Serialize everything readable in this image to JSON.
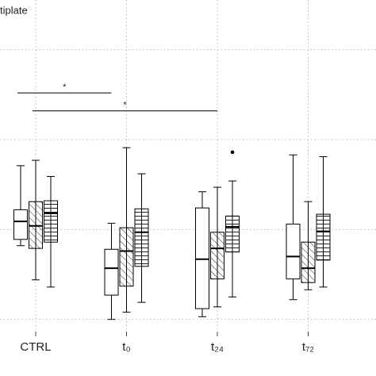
{
  "chart_data": {
    "type": "box",
    "title": "tiplate",
    "categories": [
      "CTRL",
      "t₀",
      "t₂₄",
      "t₇₂"
    ],
    "ylim": [
      -0.1,
      3.5
    ],
    "yticks": [
      0,
      1,
      2,
      3
    ],
    "grid": true,
    "series": [
      {
        "color": "#000000",
        "pattern": "none",
        "values": [
          {
            "min": 0.82,
            "q1": 0.89,
            "median": 1.09,
            "q3": 1.22,
            "max": 1.71
          },
          {
            "min": 0.0,
            "q1": 0.27,
            "median": 0.57,
            "q3": 0.78,
            "max": 1.07
          },
          {
            "min": 0.03,
            "q1": 0.12,
            "median": 0.67,
            "q3": 1.24,
            "max": 1.42
          },
          {
            "min": 0.22,
            "q1": 0.45,
            "median": 0.7,
            "q3": 1.06,
            "max": 1.83
          }
        ]
      },
      {
        "color": "#000000",
        "pattern": "diagonal",
        "values": [
          {
            "min": 0.44,
            "q1": 0.79,
            "median": 1.04,
            "q3": 1.31,
            "max": 1.77
          },
          {
            "min": 0.08,
            "q1": 0.37,
            "median": 0.76,
            "q3": 1.02,
            "max": 1.91
          },
          {
            "min": 0.14,
            "q1": 0.45,
            "median": 0.79,
            "q3": 0.97,
            "max": 1.47
          },
          {
            "min": 0.33,
            "q1": 0.41,
            "median": 0.57,
            "q3": 0.86,
            "max": 1.31
          }
        ]
      },
      {
        "color": "#000000",
        "pattern": "horizontal",
        "values": [
          {
            "min": 0.36,
            "q1": 0.86,
            "median": 1.18,
            "q3": 1.32,
            "max": 1.59
          },
          {
            "min": 0.19,
            "q1": 0.59,
            "median": 0.97,
            "q3": 1.23,
            "max": 1.62
          },
          {
            "min": 0.25,
            "q1": 0.75,
            "median": 1.03,
            "q3": 1.15,
            "max": 1.54,
            "outliers": [
              1.86
            ]
          },
          {
            "min": 0.36,
            "q1": 0.66,
            "median": 0.98,
            "q3": 1.17,
            "max": 1.81
          }
        ]
      }
    ],
    "annotations": [
      {
        "label": "*",
        "from": [
          0,
          0
        ],
        "to": [
          0,
          1
        ],
        "y": 2.52
      },
      {
        "label": "*",
        "from": [
          1,
          0
        ],
        "to": [
          1,
          2
        ],
        "y": 2.32
      }
    ]
  }
}
